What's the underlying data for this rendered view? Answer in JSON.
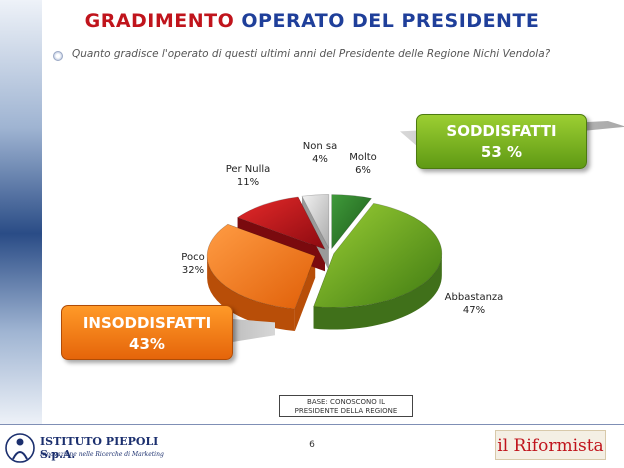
{
  "title": {
    "part1": "GRADIMENTO",
    "part2": "OPERATO DEL PRESIDENTE"
  },
  "question": "Quanto gradisce l'operato di questi ultimi anni del Presidente delle Regione Nichi Vendola?",
  "summary": {
    "satisfied": {
      "label": "SODDISFATTI",
      "value": "53 %"
    },
    "dissatisfied": {
      "label": "INSODDISFATTI",
      "value": "43%"
    }
  },
  "chart_data": {
    "type": "pie",
    "slices": [
      {
        "label": "Molto",
        "value": 6,
        "display": "6%",
        "color": "#2f7a2a"
      },
      {
        "label": "Abbastanza",
        "value": 47,
        "display": "47%",
        "color": "#6fa51e"
      },
      {
        "label": "Poco",
        "value": 32,
        "display": "32%",
        "color": "#ff7a1c"
      },
      {
        "label": "Per Nulla",
        "value": 11,
        "display": "11%",
        "color": "#c8141c"
      },
      {
        "label": "Non sa",
        "value": 4,
        "display": "4%",
        "color": "#d8d8d8"
      }
    ]
  },
  "base_note": {
    "line1": "BASE: CONOSCONO IL",
    "line2": "PRESIDENTE DELLA REGIONE"
  },
  "page_number": "6",
  "footer": {
    "left_logo_name": "ISTITUTO PIEPOLI S.p.A.",
    "left_logo_tagline": "Innovazione nelle Ricerche di Marketing",
    "right_logo_text": "il Riformista"
  }
}
